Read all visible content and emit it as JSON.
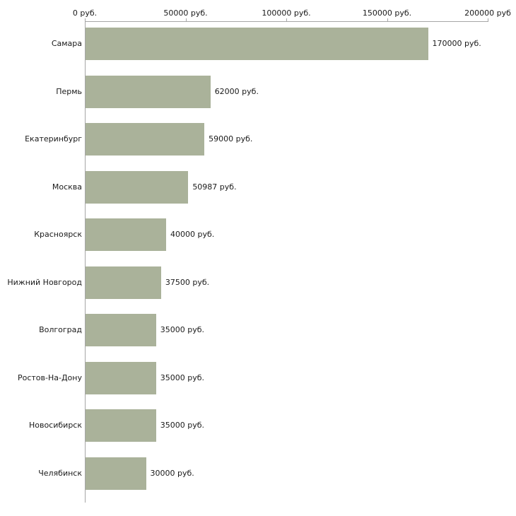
{
  "chart_data": {
    "type": "bar",
    "orientation": "horizontal",
    "title": "",
    "xlabel": "",
    "ylabel": "",
    "xlim": [
      0,
      200000
    ],
    "grid": false,
    "legend": false,
    "categories": [
      "Самара",
      "Пермь",
      "Екатеринбург",
      "Москва",
      "Красноярск",
      "Нижний Новгород",
      "Волгоград",
      "Ростов-На-Дону",
      "Новосибирск",
      "Челябинск"
    ],
    "values": [
      170000,
      62000,
      59000,
      50987,
      40000,
      37500,
      35000,
      35000,
      35000,
      30000
    ],
    "value_labels": [
      "170000 руб.",
      "62000 руб.",
      "59000 руб.",
      "50987 руб.",
      "40000 руб.",
      "37500 руб.",
      "35000 руб.",
      "35000 руб.",
      "35000 руб.",
      "30000 руб."
    ],
    "x_ticks": [
      {
        "value": 0,
        "label": "0 руб."
      },
      {
        "value": 50000,
        "label": "50000 руб."
      },
      {
        "value": 100000,
        "label": "100000 руб."
      },
      {
        "value": 150000,
        "label": "150000 руб."
      },
      {
        "value": 200000,
        "label": "200000 руб"
      }
    ],
    "colors": {
      "bar": "#aab29a",
      "axis": "#a6a6a6",
      "text": "#1a1a1a",
      "background": "#ffffff"
    }
  }
}
